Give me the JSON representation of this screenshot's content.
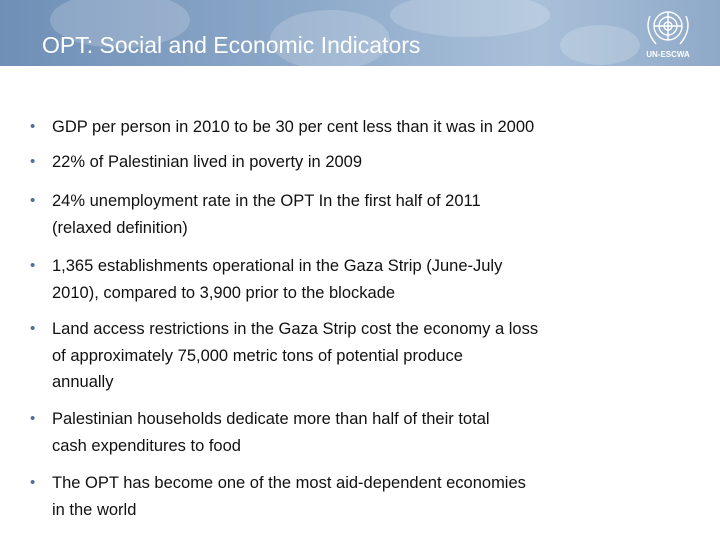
{
  "header": {
    "title": "OPT: Social and Economic Indicators",
    "logo_text": "UN-ESCWA"
  },
  "bullets": [
    {
      "lines": [
        "GDP per person in 2010 to be 30 per cent less than it was in 2000"
      ]
    },
    {
      "lines": [
        "22% of Palestinian lived in poverty in 2009"
      ]
    },
    {
      "lines": [
        "24% unemployment rate in the OPT In the first half of 2011",
        "(relaxed definition)"
      ]
    },
    {
      "lines": [
        "1,365 establishments operational in the Gaza Strip (June-July",
        "2010), compared to 3,900 prior to the blockade"
      ]
    },
    {
      "lines": [
        "Land access restrictions in the Gaza Strip cost the economy a loss",
        "of approximately 75,000 metric tons of potential produce",
        "annually"
      ]
    },
    {
      "lines": [
        "Palestinian households dedicate more than half of their total",
        "cash expenditures to food"
      ]
    },
    {
      "lines": [
        "The OPT has become one of the most aid-dependent economies",
        "in the world"
      ]
    }
  ]
}
